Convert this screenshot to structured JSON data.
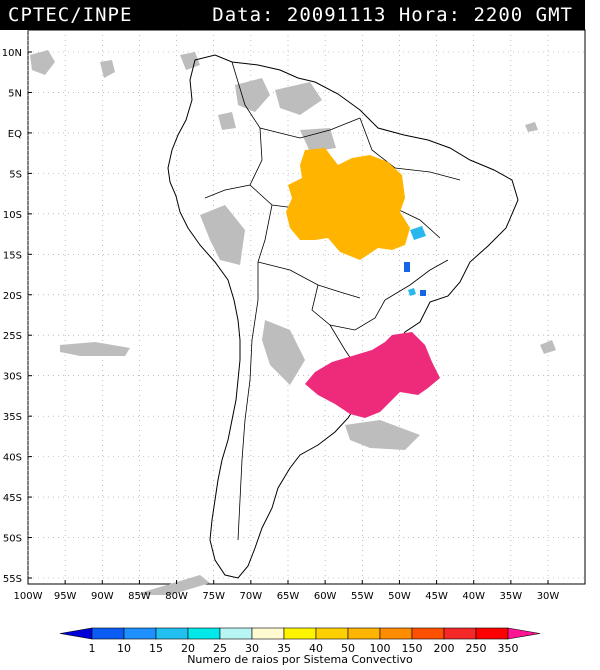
{
  "header": {
    "left": "CPTEC/INPE",
    "right": "Data: 20091113 Hora: 2200 GMT"
  },
  "colors": {
    "land_outline": "#000000",
    "cloud_gray": "#bdbdbd",
    "orange": "#ffb400",
    "magenta": "#ee2b7b",
    "cyan": "#29b7f0",
    "blue": "#1466e6"
  },
  "axes": {
    "lat_labels": [
      "10N",
      "5N",
      "EQ",
      "5S",
      "10S",
      "15S",
      "20S",
      "25S",
      "30S",
      "35S",
      "40S",
      "45S",
      "50S",
      "55S"
    ],
    "lon_labels": [
      "100W",
      "95W",
      "90W",
      "85W",
      "80W",
      "75W",
      "70W",
      "65W",
      "60W",
      "55W",
      "50W",
      "45W",
      "40W",
      "35W",
      "30W"
    ]
  },
  "colorbar": {
    "labels": [
      "1",
      "10",
      "15",
      "20",
      "25",
      "30",
      "35",
      "40",
      "50",
      "100",
      "150",
      "200",
      "250",
      "350"
    ],
    "colors": [
      "#0000d8",
      "#0a5cf5",
      "#1e90ff",
      "#22c0f0",
      "#00e8e8",
      "#b8f5f5",
      "#fffad0",
      "#fff400",
      "#ffd000",
      "#ffb400",
      "#ff8c00",
      "#ff5000",
      "#f52828",
      "#ff0000",
      "#ff1493"
    ],
    "caption": "Numero de raios por Sistema Convectivo"
  }
}
